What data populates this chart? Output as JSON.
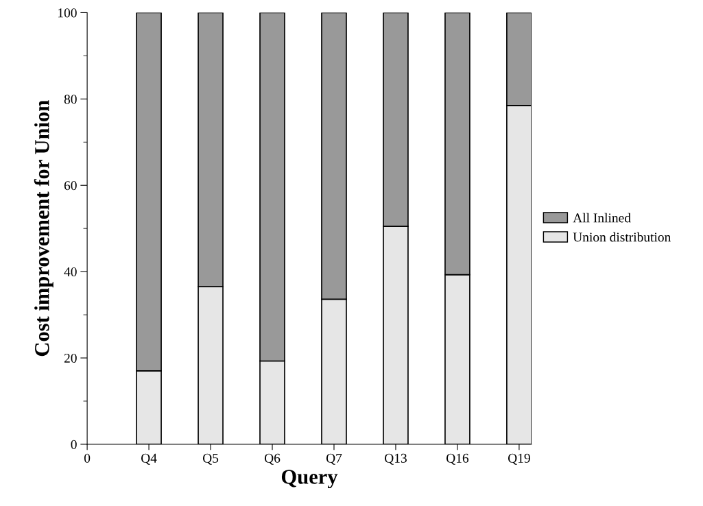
{
  "chart_data": {
    "type": "bar",
    "stacked": true,
    "xlabel": "Query",
    "ylabel": "Cost improvement for Union",
    "categories": [
      "0",
      "Q4",
      "Q5",
      "Q6",
      "Q7",
      "Q13",
      "Q16",
      "Q19"
    ],
    "series": [
      {
        "name": "Union distribution",
        "color": "#e6e6e6",
        "values": [
          null,
          17.0,
          36.5,
          19.3,
          33.6,
          50.5,
          39.3,
          78.5
        ]
      },
      {
        "name": "All Inlined",
        "color": "#999999",
        "values": [
          null,
          83.0,
          63.5,
          80.7,
          66.4,
          49.5,
          60.7,
          21.5
        ]
      }
    ],
    "ylim": [
      0,
      100
    ],
    "yticks": [
      0,
      20,
      40,
      60,
      80,
      100
    ],
    "grid": false,
    "legend": "right"
  }
}
